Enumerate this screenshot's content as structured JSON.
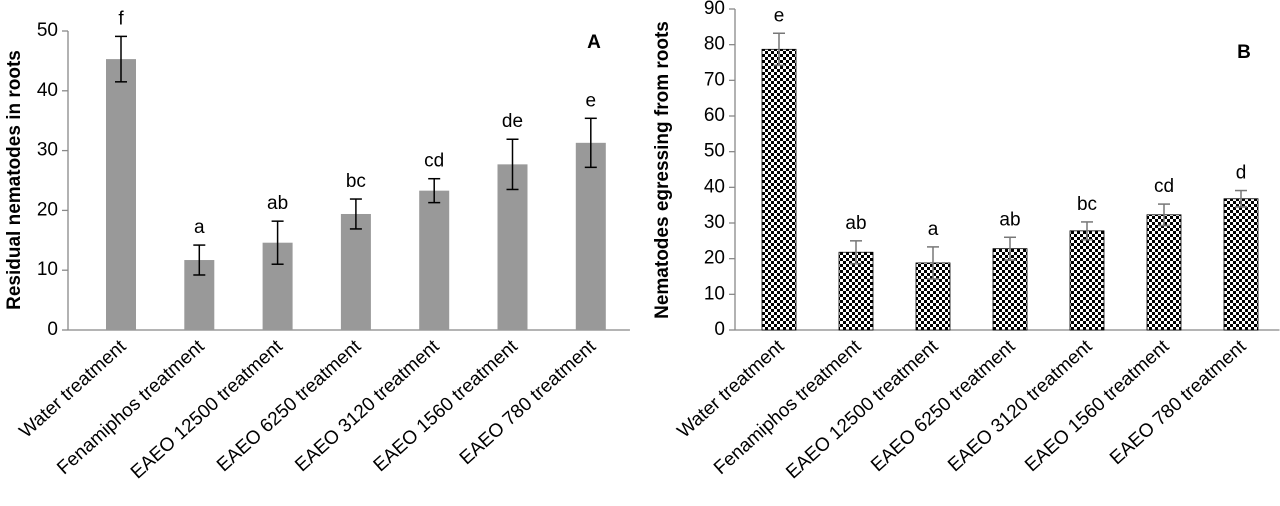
{
  "chart_data": [
    {
      "type": "bar",
      "panel_label": "A",
      "y_label": "Residual nematodes in roots",
      "categories": [
        "Water treatment",
        "Fenamiphos treatment",
        "EAEO 12500 treatment",
        "EAEO 6250 treatment",
        "EAEO 3120 treatment",
        "EAEO 1560 treatment",
        "EAEO 780 treatment"
      ],
      "values": [
        45.3,
        11.7,
        14.6,
        19.4,
        23.3,
        27.7,
        31.3
      ],
      "errors": [
        3.8,
        2.5,
        3.6,
        2.5,
        2.0,
        4.2,
        4.1
      ],
      "annotations": [
        "f",
        "a",
        "ab",
        "bc",
        "cd",
        "de",
        "e"
      ],
      "color": "#999999",
      "ylim": [
        0,
        50
      ],
      "yticks": [
        0,
        10,
        20,
        30,
        40,
        50
      ]
    },
    {
      "type": "bar",
      "panel_label": "B",
      "y_label": "Nematodes egressing from roots",
      "categories": [
        "Water treatment",
        "Fenamiphos treatment",
        "EAEO 12500 treatment",
        "EAEO 6250 treatment",
        "EAEO 3120 treatment",
        "EAEO 1560 treatment",
        "EAEO 780 treatment"
      ],
      "values": [
        78.7,
        21.8,
        18.8,
        22.8,
        27.8,
        32.3,
        36.8
      ],
      "errors": [
        4.5,
        3.2,
        4.5,
        3.2,
        2.5,
        3.0,
        2.3
      ],
      "annotations": [
        "e",
        "ab",
        "a",
        "ab",
        "bc",
        "cd",
        "d"
      ],
      "color": "#000000",
      "fill_pattern": "checkerboard",
      "ylim": [
        0,
        90
      ],
      "yticks": [
        0,
        10,
        20,
        30,
        40,
        50,
        60,
        70,
        80,
        90
      ]
    }
  ]
}
